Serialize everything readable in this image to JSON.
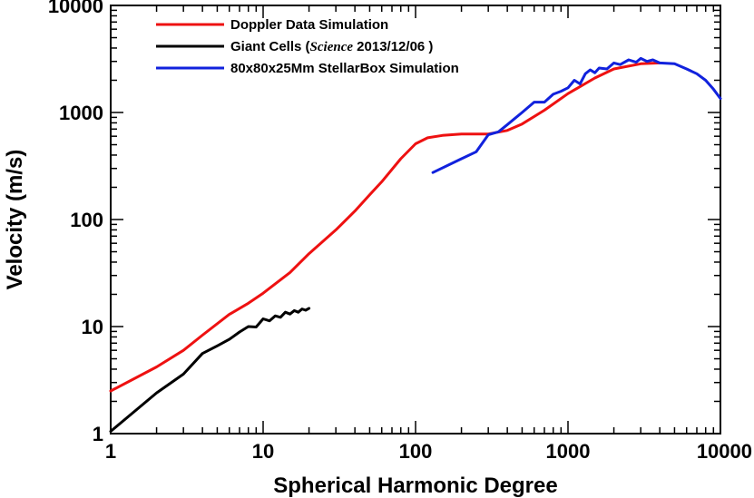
{
  "chart_data": {
    "type": "line",
    "xscale": "log",
    "yscale": "log",
    "xlim": [
      1,
      10000
    ],
    "ylim": [
      1,
      10000
    ],
    "xlabel": "Spherical Harmonic Degree",
    "ylabel": "Velocity (m/s)",
    "xticks": [
      1,
      10,
      100,
      1000,
      10000
    ],
    "xtick_labels": [
      "1",
      "10",
      "100",
      "1000",
      "10000"
    ],
    "yticks": [
      1,
      10,
      100,
      1000,
      10000
    ],
    "ytick_labels": [
      "1",
      "10",
      "100",
      "1000",
      "10000"
    ],
    "legend_position": "top-left",
    "series": [
      {
        "name": "Doppler Data Simulation",
        "color": "#ee1111",
        "x": [
          1,
          2,
          3,
          4,
          6,
          8,
          10,
          15,
          20,
          30,
          40,
          50,
          60,
          80,
          100,
          120,
          150,
          200,
          300,
          400,
          500,
          700,
          1000,
          1500,
          2000,
          3000,
          4000
        ],
        "y": [
          2.5,
          4.2,
          6.0,
          8.3,
          13,
          16.5,
          20.5,
          32,
          48,
          80,
          120,
          170,
          225,
          370,
          510,
          580,
          610,
          630,
          630,
          680,
          780,
          1050,
          1500,
          2100,
          2550,
          2850,
          2900
        ]
      },
      {
        "name": "Giant Cells (Science 2013/12/06 )",
        "name_parts": [
          "Giant Cells (",
          "Science",
          " 2013/12/06 )"
        ],
        "color": "#000000",
        "x": [
          1,
          2,
          3,
          4,
          5,
          6,
          7,
          8,
          9,
          10,
          11,
          12,
          13,
          14,
          15,
          16,
          17,
          18,
          19,
          20
        ],
        "y": [
          1.05,
          2.4,
          3.6,
          5.6,
          6.6,
          7.6,
          8.9,
          10,
          9.9,
          11.8,
          11.3,
          12.6,
          12.2,
          13.6,
          13.1,
          14.1,
          13.6,
          14.6,
          14.2,
          14.8
        ]
      },
      {
        "name": "80x80x25Mm StellarBox Simulation",
        "color": "#1122dd",
        "x": [
          130,
          200,
          250,
          300,
          350,
          400,
          500,
          600,
          700,
          800,
          900,
          1000,
          1100,
          1200,
          1300,
          1400,
          1500,
          1600,
          1800,
          2000,
          2200,
          2500,
          2800,
          3000,
          3300,
          3600,
          4000,
          5000,
          6000,
          7000,
          8000,
          9000,
          10000
        ],
        "y": [
          275,
          370,
          430,
          620,
          660,
          770,
          1000,
          1250,
          1250,
          1480,
          1580,
          1700,
          2000,
          1850,
          2300,
          2500,
          2350,
          2600,
          2550,
          2900,
          2800,
          3100,
          2950,
          3200,
          3000,
          3100,
          2900,
          2850,
          2550,
          2300,
          2000,
          1650,
          1350
        ]
      }
    ]
  }
}
